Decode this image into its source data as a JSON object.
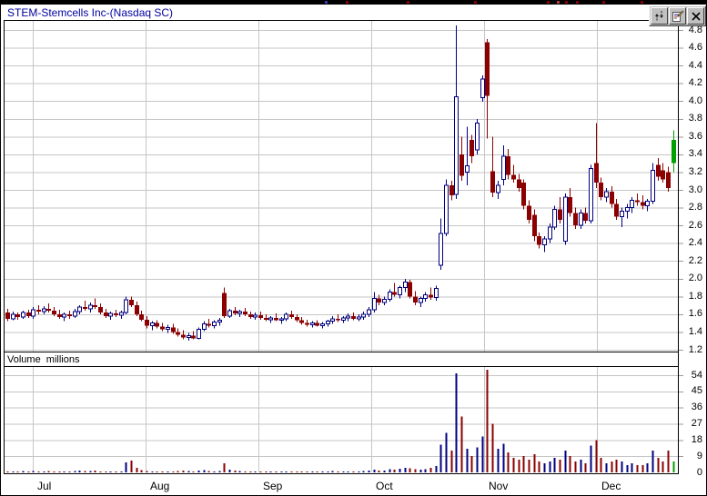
{
  "window": {
    "title": "STEM-Stemcells Inc-(Nasdaq SC)"
  },
  "toolbar": {
    "buttons": [
      {
        "icon": "sync-arrows-icon"
      },
      {
        "icon": "properties-icon"
      },
      {
        "icon": "close-icon"
      }
    ]
  },
  "volume_pane": {
    "label": "Volume  millions"
  },
  "chart_data": {
    "type": "candlestick_with_volume",
    "title": "STEM-Stemcells Inc-(Nasdaq SC)",
    "price_axis": {
      "min": 1.2,
      "max": 4.8,
      "step": 0.2,
      "ticks": [
        "4.8",
        "4.6",
        "4.4",
        "4.2",
        "4.0",
        "3.8",
        "3.6",
        "3.4",
        "3.2",
        "3.0",
        "2.8",
        "2.6",
        "2.4",
        "2.2",
        "2.0",
        "1.8",
        "1.6",
        "1.4",
        "1.2"
      ]
    },
    "volume_axis": {
      "min": 0,
      "max": 54,
      "step": 9,
      "unit": "millions",
      "ticks": [
        "54",
        "45",
        "36",
        "27",
        "18",
        "9",
        "0"
      ]
    },
    "months": [
      "Jul",
      "Aug",
      "Sep",
      "Oct",
      "Nov",
      "Dec"
    ],
    "grid": true,
    "legend": "none",
    "colors": {
      "up": "#000080",
      "down": "#8b0000",
      "current": "#00a000",
      "grid": "#c6c6c6",
      "title": "#0000a0",
      "border": "#000000"
    },
    "candle_format": [
      "open",
      "high",
      "low",
      "close",
      "direction(r=down,b=up-hollow,g=current-green)",
      "volume_millions"
    ],
    "candles": [
      [
        1.62,
        1.66,
        1.52,
        1.55,
        "r",
        0.6
      ],
      [
        1.55,
        1.63,
        1.53,
        1.6,
        "b",
        0.5
      ],
      [
        1.6,
        1.62,
        1.54,
        1.57,
        "r",
        0.4
      ],
      [
        1.57,
        1.64,
        1.55,
        1.62,
        "b",
        0.7
      ],
      [
        1.62,
        1.65,
        1.56,
        1.58,
        "r",
        0.5
      ],
      [
        1.58,
        1.68,
        1.55,
        1.65,
        "b",
        0.8
      ],
      [
        1.65,
        1.7,
        1.6,
        1.63,
        "r",
        0.6
      ],
      [
        1.63,
        1.69,
        1.6,
        1.66,
        "b",
        0.5
      ],
      [
        1.66,
        1.72,
        1.62,
        1.64,
        "r",
        0.7
      ],
      [
        1.64,
        1.68,
        1.58,
        1.6,
        "r",
        0.5
      ],
      [
        1.6,
        1.65,
        1.55,
        1.57,
        "r",
        0.4
      ],
      [
        1.57,
        1.62,
        1.52,
        1.6,
        "b",
        0.6
      ],
      [
        1.6,
        1.64,
        1.55,
        1.58,
        "r",
        0.5
      ],
      [
        1.58,
        1.66,
        1.56,
        1.63,
        "b",
        0.8
      ],
      [
        1.63,
        1.7,
        1.6,
        1.68,
        "b",
        0.9
      ],
      [
        1.68,
        1.75,
        1.64,
        1.66,
        "r",
        0.7
      ],
      [
        1.66,
        1.73,
        1.62,
        1.7,
        "b",
        0.8
      ],
      [
        1.7,
        1.78,
        1.66,
        1.68,
        "r",
        1.1
      ],
      [
        1.68,
        1.72,
        1.6,
        1.62,
        "r",
        0.6
      ],
      [
        1.62,
        1.66,
        1.56,
        1.58,
        "r",
        0.5
      ],
      [
        1.58,
        1.63,
        1.54,
        1.61,
        "b",
        0.4
      ],
      [
        1.61,
        1.65,
        1.57,
        1.59,
        "r",
        0.5
      ],
      [
        1.59,
        1.64,
        1.55,
        1.62,
        "b",
        0.6
      ],
      [
        1.62,
        1.8,
        1.6,
        1.76,
        "b",
        5.5
      ],
      [
        1.76,
        1.8,
        1.68,
        1.7,
        "r",
        6.5
      ],
      [
        1.7,
        1.74,
        1.58,
        1.6,
        "r",
        2.5
      ],
      [
        1.6,
        1.64,
        1.52,
        1.54,
        "r",
        1.2
      ],
      [
        1.54,
        1.58,
        1.44,
        1.47,
        "r",
        0.8
      ],
      [
        1.47,
        1.52,
        1.42,
        1.5,
        "b",
        0.6
      ],
      [
        1.5,
        1.53,
        1.44,
        1.46,
        "r",
        0.5
      ],
      [
        1.46,
        1.5,
        1.41,
        1.43,
        "r",
        0.4
      ],
      [
        1.43,
        1.48,
        1.39,
        1.45,
        "b",
        0.5
      ],
      [
        1.45,
        1.49,
        1.38,
        1.4,
        "r",
        0.6
      ],
      [
        1.4,
        1.44,
        1.35,
        1.37,
        "r",
        0.7
      ],
      [
        1.37,
        1.42,
        1.32,
        1.34,
        "r",
        0.9
      ],
      [
        1.34,
        1.39,
        1.3,
        1.36,
        "b",
        0.8
      ],
      [
        1.36,
        1.41,
        1.32,
        1.33,
        "r",
        0.6
      ],
      [
        1.33,
        1.45,
        1.32,
        1.43,
        "b",
        1.0
      ],
      [
        1.43,
        1.52,
        1.41,
        1.49,
        "b",
        1.2
      ],
      [
        1.49,
        1.55,
        1.45,
        1.47,
        "r",
        0.8
      ],
      [
        1.47,
        1.53,
        1.44,
        1.51,
        "b",
        0.6
      ],
      [
        1.51,
        1.56,
        1.47,
        1.53,
        "b",
        0.7
      ],
      [
        1.84,
        1.9,
        1.56,
        1.58,
        "r",
        5.0
      ],
      [
        1.58,
        1.66,
        1.56,
        1.64,
        "b",
        1.6
      ],
      [
        1.64,
        1.68,
        1.59,
        1.61,
        "r",
        0.9
      ],
      [
        1.61,
        1.65,
        1.57,
        1.63,
        "b",
        0.7
      ],
      [
        1.63,
        1.67,
        1.58,
        1.6,
        "r",
        0.6
      ],
      [
        1.6,
        1.63,
        1.55,
        1.57,
        "r",
        0.5
      ],
      [
        1.57,
        1.62,
        1.54,
        1.59,
        "b",
        0.6
      ],
      [
        1.59,
        1.63,
        1.54,
        1.56,
        "r",
        0.5
      ],
      [
        1.56,
        1.6,
        1.52,
        1.54,
        "r",
        0.4
      ],
      [
        1.54,
        1.58,
        1.5,
        1.56,
        "b",
        0.5
      ],
      [
        1.56,
        1.61,
        1.52,
        1.53,
        "r",
        0.4
      ],
      [
        1.53,
        1.57,
        1.49,
        1.55,
        "b",
        0.5
      ],
      [
        1.55,
        1.62,
        1.52,
        1.6,
        "b",
        0.6
      ],
      [
        1.6,
        1.64,
        1.55,
        1.57,
        "r",
        0.5
      ],
      [
        1.57,
        1.6,
        1.51,
        1.53,
        "r",
        0.6
      ],
      [
        1.53,
        1.57,
        1.48,
        1.5,
        "r",
        0.5
      ],
      [
        1.5,
        1.54,
        1.46,
        1.48,
        "r",
        0.6
      ],
      [
        1.48,
        1.52,
        1.45,
        1.5,
        "b",
        0.4
      ],
      [
        1.5,
        1.53,
        1.46,
        1.47,
        "r",
        0.4
      ],
      [
        1.47,
        1.51,
        1.44,
        1.49,
        "b",
        0.5
      ],
      [
        1.49,
        1.54,
        1.46,
        1.52,
        "b",
        0.5
      ],
      [
        1.52,
        1.58,
        1.49,
        1.55,
        "b",
        0.7
      ],
      [
        1.55,
        1.6,
        1.51,
        1.53,
        "r",
        0.5
      ],
      [
        1.53,
        1.58,
        1.5,
        1.56,
        "b",
        0.6
      ],
      [
        1.56,
        1.61,
        1.52,
        1.58,
        "b",
        0.6
      ],
      [
        1.58,
        1.62,
        1.53,
        1.55,
        "r",
        0.5
      ],
      [
        1.55,
        1.6,
        1.52,
        1.57,
        "b",
        0.6
      ],
      [
        1.57,
        1.63,
        1.54,
        1.6,
        "b",
        0.8
      ],
      [
        1.6,
        1.68,
        1.57,
        1.65,
        "b",
        1.0
      ],
      [
        1.65,
        1.85,
        1.62,
        1.78,
        "b",
        1.4
      ],
      [
        1.78,
        1.82,
        1.7,
        1.73,
        "r",
        1.0
      ],
      [
        1.73,
        1.8,
        1.7,
        1.77,
        "b",
        1.1
      ],
      [
        1.77,
        1.88,
        1.74,
        1.85,
        "b",
        1.8
      ],
      [
        1.85,
        1.95,
        1.8,
        1.82,
        "r",
        1.5
      ],
      [
        1.82,
        1.92,
        1.78,
        1.9,
        "b",
        2.0
      ],
      [
        1.9,
        2.0,
        1.85,
        1.96,
        "b",
        2.6
      ],
      [
        1.96,
        1.99,
        1.78,
        1.8,
        "r",
        2.2
      ],
      [
        1.8,
        1.86,
        1.7,
        1.73,
        "r",
        1.8
      ],
      [
        1.73,
        1.8,
        1.68,
        1.78,
        "b",
        1.5
      ],
      [
        1.78,
        1.85,
        1.74,
        1.82,
        "b",
        1.7
      ],
      [
        1.82,
        1.9,
        1.76,
        1.79,
        "r",
        2.5
      ],
      [
        1.79,
        1.92,
        1.75,
        1.89,
        "b",
        3.5
      ],
      [
        2.15,
        2.68,
        2.1,
        2.51,
        "b",
        15.5
      ],
      [
        2.51,
        3.12,
        2.48,
        3.05,
        "b",
        22.0
      ],
      [
        3.05,
        3.1,
        2.88,
        2.94,
        "r",
        12.0
      ],
      [
        2.95,
        4.85,
        2.9,
        4.05,
        "b",
        55.0
      ],
      [
        3.4,
        3.6,
        3.1,
        3.16,
        "r",
        31.0
      ],
      [
        3.2,
        3.71,
        3.05,
        3.27,
        "b",
        13.0
      ],
      [
        3.56,
        3.62,
        3.3,
        3.38,
        "r",
        9.0
      ],
      [
        3.45,
        3.8,
        3.4,
        3.75,
        "b",
        14.0
      ],
      [
        4.04,
        4.29,
        3.99,
        4.25,
        "b",
        20.0
      ],
      [
        4.66,
        4.7,
        3.58,
        4.06,
        "r",
        57.0
      ],
      [
        3.21,
        3.6,
        2.92,
        2.97,
        "r",
        27.0
      ],
      [
        2.97,
        3.1,
        2.9,
        3.05,
        "b",
        13.0
      ],
      [
        3.12,
        3.5,
        3.05,
        3.38,
        "b",
        16.0
      ],
      [
        3.38,
        3.46,
        3.12,
        3.17,
        "r",
        11.0
      ],
      [
        3.17,
        3.28,
        3.08,
        3.12,
        "r",
        8.0
      ],
      [
        3.12,
        3.18,
        2.98,
        3.02,
        "r",
        7.0
      ],
      [
        3.08,
        3.12,
        2.78,
        2.82,
        "r",
        9.0
      ],
      [
        2.82,
        2.88,
        2.62,
        2.66,
        "r",
        7.0
      ],
      [
        2.72,
        2.78,
        2.42,
        2.48,
        "r",
        10.0
      ],
      [
        2.48,
        2.52,
        2.34,
        2.38,
        "r",
        6.0
      ],
      [
        2.38,
        2.48,
        2.3,
        2.45,
        "b",
        5.0
      ],
      [
        2.45,
        2.62,
        2.4,
        2.58,
        "b",
        6.0
      ],
      [
        2.58,
        2.82,
        2.55,
        2.78,
        "b",
        8.0
      ],
      [
        2.78,
        2.92,
        2.62,
        2.66,
        "r",
        7.0
      ],
      [
        2.42,
        2.96,
        2.38,
        2.92,
        "b",
        12.0
      ],
      [
        2.92,
        3.02,
        2.7,
        2.74,
        "r",
        9.0
      ],
      [
        2.74,
        2.8,
        2.56,
        2.6,
        "r",
        6.0
      ],
      [
        2.6,
        2.78,
        2.56,
        2.74,
        "b",
        7.0
      ],
      [
        2.74,
        2.8,
        2.62,
        2.65,
        "r",
        5.0
      ],
      [
        2.65,
        3.28,
        2.62,
        3.24,
        "b",
        15.0
      ],
      [
        3.3,
        3.75,
        3.02,
        3.08,
        "r",
        18.0
      ],
      [
        3.08,
        3.14,
        2.88,
        2.92,
        "r",
        8.0
      ],
      [
        2.92,
        3.02,
        2.86,
        2.98,
        "b",
        5.0
      ],
      [
        2.98,
        3.04,
        2.8,
        2.84,
        "r",
        6.0
      ],
      [
        2.84,
        2.9,
        2.66,
        2.7,
        "r",
        7.0
      ],
      [
        2.7,
        2.8,
        2.58,
        2.76,
        "b",
        6.0
      ],
      [
        2.76,
        2.84,
        2.68,
        2.8,
        "b",
        4.0
      ],
      [
        2.8,
        2.92,
        2.74,
        2.88,
        "b",
        5.0
      ],
      [
        2.88,
        2.96,
        2.82,
        2.86,
        "r",
        4.0
      ],
      [
        2.86,
        2.94,
        2.78,
        2.82,
        "r",
        4.0
      ],
      [
        2.82,
        2.9,
        2.76,
        2.87,
        "b",
        5.0
      ],
      [
        2.87,
        3.3,
        2.84,
        3.22,
        "b",
        12.0
      ],
      [
        3.28,
        3.36,
        3.1,
        3.15,
        "r",
        8.0
      ],
      [
        3.22,
        3.3,
        3.08,
        3.12,
        "r",
        6.0
      ],
      [
        3.2,
        3.26,
        2.98,
        3.02,
        "r",
        12.0
      ],
      [
        3.3,
        3.67,
        3.2,
        3.56,
        "g",
        6.0
      ]
    ]
  }
}
